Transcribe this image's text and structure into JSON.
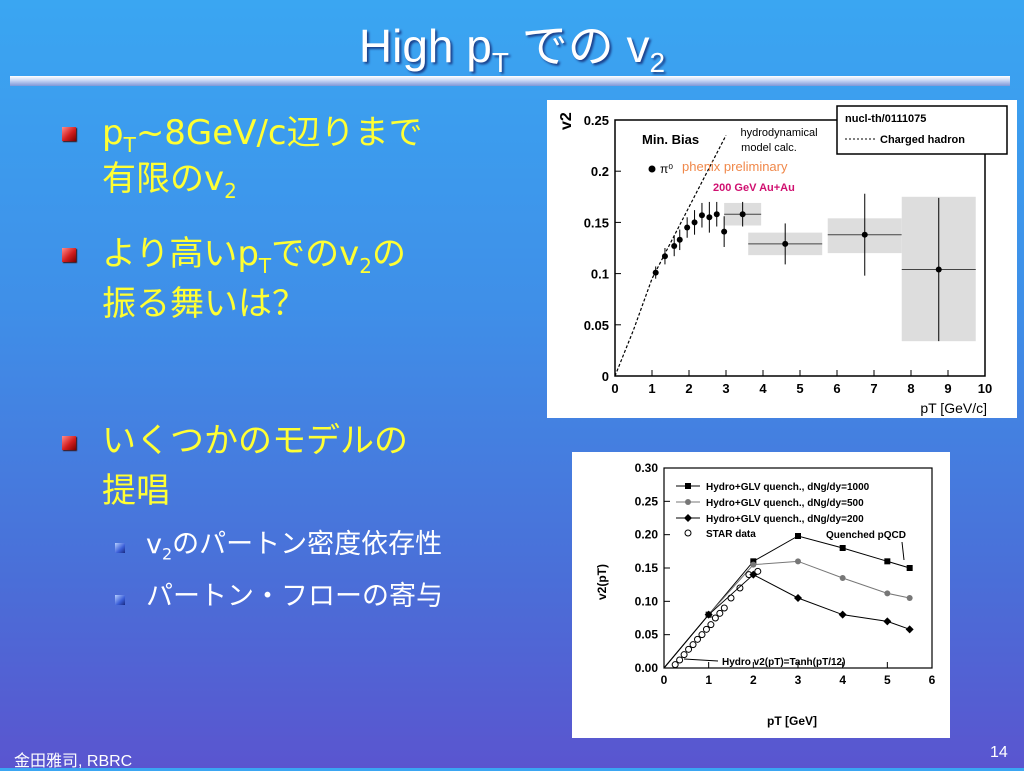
{
  "slide": {
    "title_main": "High p",
    "title_sub_T": "T",
    "title_mid": " での v",
    "title_sub_2": "2",
    "page_number": "14",
    "footer_author": "金田雅司, RBRC"
  },
  "bullets": [
    {
      "pre": "p",
      "sub": "T",
      "post": "~8GeV/c辺りまで"
    },
    {
      "line2_pre": "有限のv",
      "line2_sub": "2"
    },
    {
      "pre": "より高いp",
      "sub": "T",
      "mid": "でのv",
      "sub2": "2",
      "post": "の"
    },
    {
      "line2": "振る舞いは？"
    },
    {
      "line1": "いくつかのモデルの",
      "line2": "提唱"
    }
  ],
  "sub_bullets": [
    {
      "pre": "v",
      "sub": "2",
      "post": "のパートン密度依存性"
    },
    {
      "text": "パートン・フローの寄与"
    }
  ],
  "colors": {
    "title": "#ffffff",
    "bullet_text": "#ffff33",
    "sub_text": "#ffffff",
    "bullet_marker": "#d21e1e",
    "hydro_curve": "#000000",
    "phenix_label": "#f0884a",
    "auau_label": "#d01070"
  },
  "chart_data": [
    {
      "type": "scatter",
      "title": "",
      "ylabel": "v2",
      "xlabel": "pT [GeV/c]",
      "xlim": [
        0,
        10
      ],
      "ylim": [
        0,
        0.25
      ],
      "x_ticks": [
        0,
        1,
        2,
        3,
        4,
        5,
        6,
        7,
        8,
        9,
        10
      ],
      "y_ticks": [
        0,
        0.05,
        0.1,
        0.15,
        0.2,
        0.25
      ],
      "y_tick_labels": [
        "0",
        "0.05",
        "0.1",
        "0.15",
        "0.2",
        "0.25"
      ],
      "legend_box": [
        "nucl-th/0111075",
        "Charged hadron"
      ],
      "annotations": [
        "Min. Bias",
        "hydrodynamical",
        "model calc.",
        "π⁰",
        "phenix preliminary",
        "200 GeV Au+Au"
      ],
      "series": [
        {
          "name": "π⁰",
          "x": [
            1.1,
            1.35,
            1.6,
            1.75,
            1.95,
            2.15,
            2.35,
            2.55,
            2.75,
            2.95,
            3.45,
            4.6,
            6.75,
            8.75
          ],
          "y": [
            0.101,
            0.117,
            0.127,
            0.133,
            0.145,
            0.15,
            0.157,
            0.155,
            0.158,
            0.141,
            0.158,
            0.129,
            0.138,
            0.104
          ],
          "err": [
            0.006,
            0.008,
            0.01,
            0.01,
            0.01,
            0.012,
            0.012,
            0.015,
            0.012,
            0.015,
            0.012,
            0.02,
            0.04,
            0.07
          ],
          "sys_low": [
            null,
            null,
            null,
            null,
            null,
            null,
            null,
            null,
            null,
            null,
            0.147,
            0.118,
            0.12,
            0.034
          ],
          "sys_high": [
            null,
            null,
            null,
            null,
            null,
            null,
            null,
            null,
            null,
            null,
            0.169,
            0.14,
            0.154,
            0.175
          ],
          "xerr": [
            null,
            null,
            null,
            null,
            null,
            null,
            null,
            null,
            null,
            null,
            0.5,
            1.0,
            1.0,
            1.0
          ]
        }
      ],
      "hydro_curve": {
        "x": [
          0,
          0.5,
          1.0,
          1.5,
          2.0,
          2.5,
          3.0
        ],
        "y": [
          0,
          0.045,
          0.095,
          0.13,
          0.165,
          0.2,
          0.235
        ]
      }
    },
    {
      "type": "line",
      "title": "",
      "ylabel": "v2(pT)",
      "xlabel": "pT [GeV]",
      "xlim": [
        0,
        6
      ],
      "ylim": [
        0,
        0.3
      ],
      "x_ticks": [
        0,
        1,
        2,
        3,
        4,
        5,
        6
      ],
      "y_ticks": [
        0,
        0.05,
        0.1,
        0.15,
        0.2,
        0.25,
        0.3
      ],
      "y_tick_labels": [
        "0.00",
        "0.05",
        "0.10",
        "0.15",
        "0.20",
        "0.25",
        "0.30"
      ],
      "annotations": [
        "Quenched pQCD",
        "Hydro v2(pT)=Tanh(pT/12)"
      ],
      "series": [
        {
          "name": "Hydro+GLV quench., dNg/dy=1000",
          "x": [
            0,
            1,
            2,
            3,
            4,
            5,
            5.5
          ],
          "y": [
            0,
            0.08,
            0.16,
            0.198,
            0.18,
            0.16,
            0.15
          ]
        },
        {
          "name": "Hydro+GLV quench., dNg/dy=500",
          "x": [
            0,
            1,
            2,
            3,
            4,
            5,
            5.5
          ],
          "y": [
            0,
            0.08,
            0.155,
            0.16,
            0.135,
            0.112,
            0.105
          ]
        },
        {
          "name": "Hydro+GLV quench., dNg/dy=200",
          "x": [
            0,
            1,
            2,
            3,
            4,
            5,
            5.5
          ],
          "y": [
            0,
            0.08,
            0.14,
            0.105,
            0.08,
            0.07,
            0.058
          ]
        },
        {
          "name": "STAR data",
          "x": [
            0.25,
            0.35,
            0.45,
            0.55,
            0.65,
            0.75,
            0.85,
            0.95,
            1.05,
            1.15,
            1.25,
            1.35,
            1.5,
            1.7,
            1.9,
            2.1
          ],
          "y": [
            0.005,
            0.012,
            0.02,
            0.028,
            0.035,
            0.043,
            0.05,
            0.058,
            0.065,
            0.075,
            0.082,
            0.09,
            0.105,
            0.12,
            0.14,
            0.145
          ]
        }
      ]
    }
  ]
}
